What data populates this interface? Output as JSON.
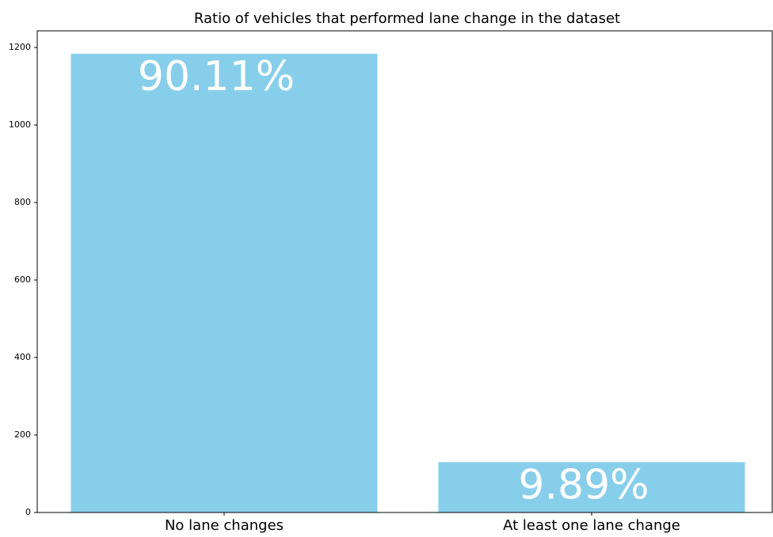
{
  "chart_data": {
    "type": "bar",
    "title": "Ratio of vehicles that performed lane change in the dataset",
    "categories": [
      "No lane changes",
      "At least one lane change"
    ],
    "values": [
      1184,
      130
    ],
    "annotations": [
      {
        "value": 90.11,
        "label": "90.11%"
      },
      {
        "value": 9.89,
        "label": "9.89%"
      }
    ],
    "color": "#87ceeb",
    "ylim": [
      0,
      1243
    ],
    "yticks": [
      0,
      200,
      400,
      600,
      800,
      1000,
      1200
    ],
    "grid": false
  }
}
